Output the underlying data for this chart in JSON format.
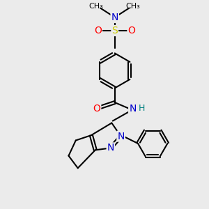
{
  "bg_color": "#ebebeb",
  "bond_color": "#000000",
  "bond_width": 1.5,
  "atom_colors": {
    "N": "#0000cc",
    "O": "#ff0000",
    "S": "#cccc00",
    "C": "#000000",
    "H": "#008080"
  },
  "font_size": 9
}
